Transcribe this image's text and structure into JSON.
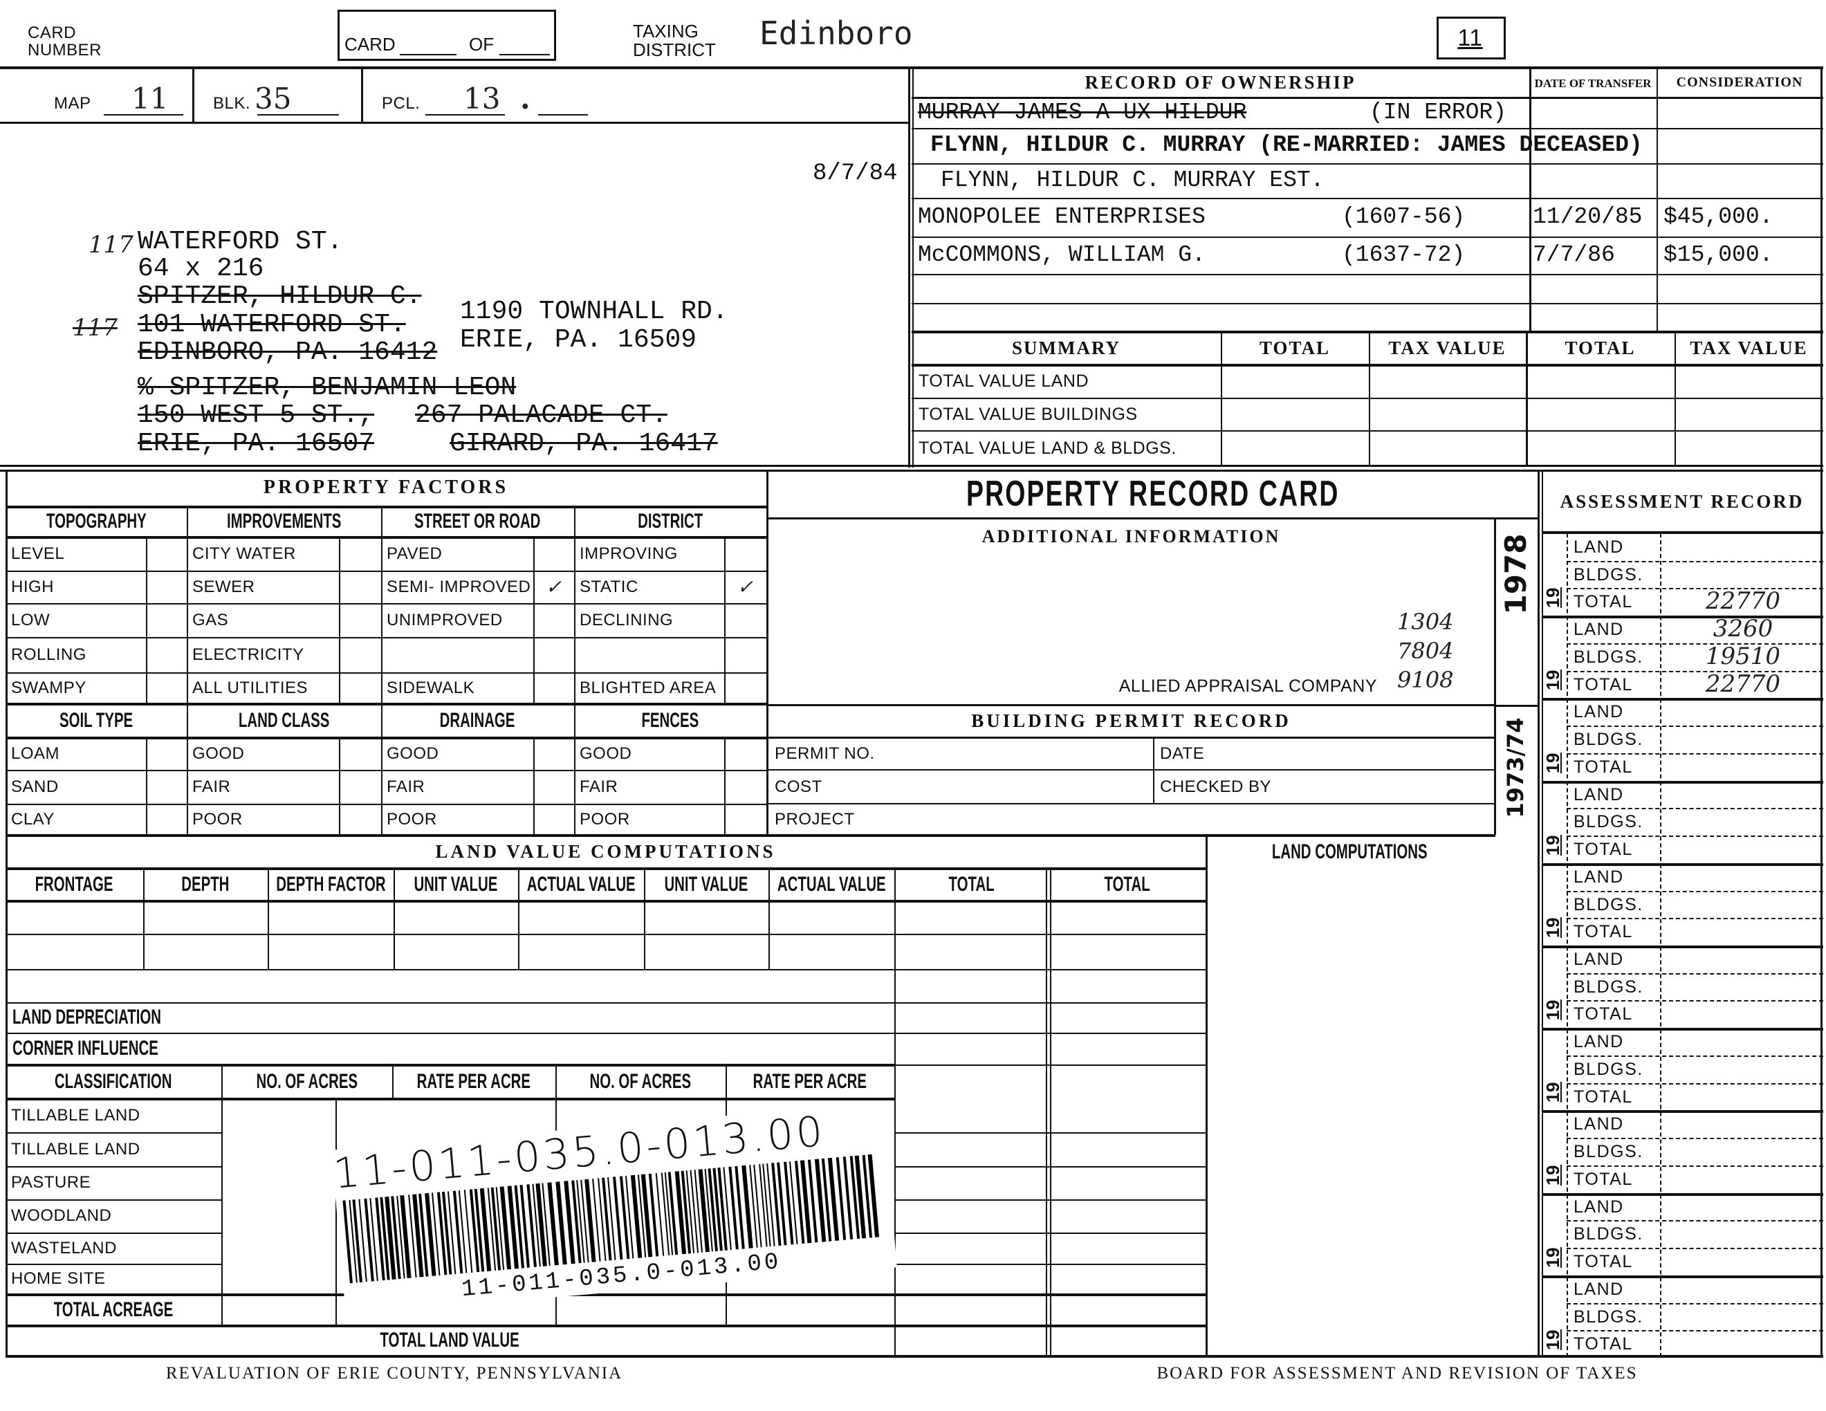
{
  "header": {
    "card_number_label": "CARD NUMBER",
    "card_label": "CARD",
    "of_label": "OF",
    "taxing_district_label": "TAXING DISTRICT",
    "taxing_district": "Edinboro",
    "box_value": "11"
  },
  "parcel": {
    "map_label": "MAP",
    "map": "11",
    "blk_label": "BLK.",
    "blk": "35",
    "pcl_label": "PCL.",
    "pcl": "13",
    "pcl_suffix": "."
  },
  "address": {
    "date": "8/7/84",
    "house_number_hand": "117",
    "house_number_hand_2": "117",
    "lines": [
      {
        "text": "WATERFORD ST.",
        "struck": false
      },
      {
        "text": "64 x 216",
        "struck": false
      },
      {
        "text": "SPITZER, HILDUR C.",
        "struck": true
      },
      {
        "text": "101 WATERFORD ST.",
        "struck": true
      },
      {
        "text": "EDINBORO, PA. 16412",
        "struck": true
      },
      {
        "text": "% SPITZER, BENJAMIN LEON",
        "struck": true
      },
      {
        "text": "150 WEST 5 ST.,",
        "struck": true
      },
      {
        "text": "ERIE, PA.    16507",
        "struck": true
      }
    ],
    "alt_lines": [
      {
        "text": "1190 TOWNHALL RD.",
        "struck": false
      },
      {
        "text": "ERIE, PA.  16509",
        "struck": false
      },
      {
        "text": "267 PALACADE CT.",
        "struck": true
      },
      {
        "text": "GIRARD, PA.  16417",
        "struck": true
      }
    ]
  },
  "ownership": {
    "title": "RECORD OF OWNERSHIP",
    "date_header": "DATE OF TRANSFER",
    "consideration_header": "CONSIDERATION",
    "rows": [
      {
        "name": "MURRAY JAMES A UX HILDUR",
        "struck": true,
        "note": "(IN ERROR)",
        "date": "",
        "consideration": ""
      },
      {
        "name": "FLYNN, HILDUR C. MURRAY  (RE-MARRIED: JAMES DECEASED)",
        "struck": false,
        "note": "",
        "date": "",
        "consideration": ""
      },
      {
        "name": "FLYNN, HILDUR C. MURRAY EST.",
        "struck": false,
        "note": "",
        "date": "",
        "consideration": ""
      },
      {
        "name": "MONOPOLEE ENTERPRISES",
        "struck": false,
        "note": "(1607-56)",
        "date": "11/20/85",
        "consideration": "$45,000."
      },
      {
        "name": "McCOMMONS, WILLIAM G.",
        "struck": false,
        "note": "(1637-72)",
        "date": "7/7/86",
        "consideration": "$15,000."
      }
    ]
  },
  "summary": {
    "headers": [
      "SUMMARY",
      "TOTAL",
      "TAX VALUE",
      "TOTAL",
      "TAX VALUE"
    ],
    "rows": [
      "TOTAL VALUE LAND",
      "TOTAL VALUE BUILDINGS",
      "TOTAL VALUE LAND & BLDGS."
    ]
  },
  "property_factors": {
    "title": "PROPERTY FACTORS",
    "check_mark": "✓",
    "columns": [
      {
        "header": "TOPOGRAPHY",
        "items": [
          {
            "label": "LEVEL",
            "checked": false
          },
          {
            "label": "HIGH",
            "checked": false
          },
          {
            "label": "LOW",
            "checked": false
          },
          {
            "label": "ROLLING",
            "checked": false
          },
          {
            "label": "SWAMPY",
            "checked": false
          }
        ]
      },
      {
        "header": "IMPROVEMENTS",
        "items": [
          {
            "label": "CITY WATER",
            "checked": false
          },
          {
            "label": "SEWER",
            "checked": false
          },
          {
            "label": "GAS",
            "checked": false
          },
          {
            "label": "ELECTRICITY",
            "checked": false
          },
          {
            "label": "ALL UTILITIES",
            "checked": false
          }
        ]
      },
      {
        "header": "STREET OR ROAD",
        "items": [
          {
            "label": "PAVED",
            "checked": false
          },
          {
            "label": "SEMI- IMPROVED",
            "checked": true
          },
          {
            "label": "UNIMPROVED",
            "checked": false
          },
          {
            "label": "",
            "checked": false
          },
          {
            "label": "SIDEWALK",
            "checked": false
          }
        ]
      },
      {
        "header": "DISTRICT",
        "items": [
          {
            "label": "IMPROVING",
            "checked": false
          },
          {
            "label": "STATIC",
            "checked": true
          },
          {
            "label": "DECLINING",
            "checked": false
          },
          {
            "label": "",
            "checked": false
          },
          {
            "label": "BLIGHTED AREA",
            "checked": false
          }
        ]
      }
    ],
    "soil_columns": [
      {
        "header": "SOIL TYPE",
        "items": [
          "LOAM",
          "SAND",
          "CLAY"
        ]
      },
      {
        "header": "LAND CLASS",
        "items": [
          "GOOD",
          "FAIR",
          "POOR"
        ]
      },
      {
        "header": "DRAINAGE",
        "items": [
          "GOOD",
          "FAIR",
          "POOR"
        ]
      },
      {
        "header": "FENCES",
        "items": [
          "GOOD",
          "FAIR",
          "POOR"
        ]
      }
    ]
  },
  "center": {
    "title": "PROPERTY RECORD CARD",
    "additional_info_title": "ADDITIONAL INFORMATION",
    "appraiser": "ALLIED APPRAISAL COMPANY",
    "hand_numbers": [
      "1304",
      "7804",
      "9108"
    ],
    "permit_title": "BUILDING PERMIT RECORD",
    "permit_no_label": "PERMIT NO.",
    "date_label": "DATE",
    "cost_label": "COST",
    "checked_by_label": "CHECKED BY",
    "project_label": "PROJECT",
    "stamp_1": "1978",
    "stamp_2": "1973/74"
  },
  "land_value": {
    "title": "LAND VALUE COMPUTATIONS",
    "headers": [
      "FRONTAGE",
      "DEPTH",
      "DEPTH FACTOR",
      "UNIT VALUE",
      "ACTUAL VALUE",
      "UNIT VALUE",
      "ACTUAL VALUE",
      "TOTAL",
      "TOTAL"
    ],
    "land_depreciation": "LAND DEPRECIATION",
    "corner_influence": "CORNER INFLUENCE",
    "class_headers": [
      "CLASSIFICATION",
      "NO. OF ACRES",
      "RATE PER ACRE",
      "NO. OF ACRES",
      "RATE PER ACRE"
    ],
    "class_rows": [
      "TILLABLE LAND",
      "TILLABLE LAND",
      "PASTURE",
      "WOODLAND",
      "WASTELAND",
      "HOME SITE"
    ],
    "total_acreage": "TOTAL ACREAGE",
    "total_land_value": "TOTAL LAND VALUE",
    "land_computations_title": "LAND COMPUTATIONS"
  },
  "barcode": {
    "handwritten": "11-011-035.0-013.00",
    "printed": "11-011-035.0-013.00"
  },
  "assessment": {
    "title": "ASSESSMENT RECORD",
    "year_prefix": "19",
    "row_labels": [
      "LAND",
      "BLDGS.",
      "TOTAL"
    ],
    "blocks": [
      {
        "land": "",
        "bldgs": "",
        "total": "22770"
      },
      {
        "land": "3260",
        "bldgs": "19510",
        "total": "22770"
      },
      {
        "land": "",
        "bldgs": "",
        "total": ""
      },
      {
        "land": "",
        "bldgs": "",
        "total": ""
      },
      {
        "land": "",
        "bldgs": "",
        "total": ""
      },
      {
        "land": "",
        "bldgs": "",
        "total": ""
      },
      {
        "land": "",
        "bldgs": "",
        "total": ""
      },
      {
        "land": "",
        "bldgs": "",
        "total": ""
      },
      {
        "land": "",
        "bldgs": "",
        "total": ""
      },
      {
        "land": "",
        "bldgs": "",
        "total": ""
      }
    ]
  },
  "footer": {
    "left": "REVALUATION OF ERIE COUNTY, PENNSYLVANIA",
    "right": "BOARD FOR ASSESSMENT AND REVISION OF TAXES"
  }
}
